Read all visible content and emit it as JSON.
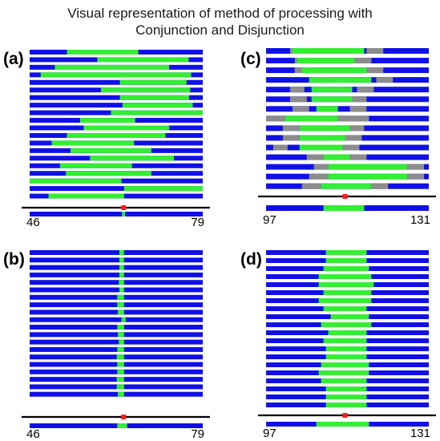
{
  "title": {
    "line1": "Visual representation of method of processing with",
    "line2": "Conjunction and Disjunction"
  },
  "colors": {
    "outside": "#1010e6",
    "inside": "#33ee33",
    "uncertain": "#8c8c8c",
    "axis": "#000000",
    "marker": "#ff1a1a"
  },
  "panels": [
    {
      "id": "a",
      "label": "(a)",
      "range": [
        46,
        79
      ],
      "ticks": [
        "46",
        "79"
      ],
      "marker": 63.9,
      "rows": [
        [
          [
            53.1,
            66.7
          ]
        ],
        [
          [
            58.9,
            76.3
          ]
        ],
        [
          [
            50.8,
            72.6
          ]
        ],
        [
          [
            48.1,
            76.8
          ]
        ],
        [
          [
            63.2,
            75.9
          ]
        ],
        [
          [
            59.6,
            76.6
          ]
        ],
        [
          [
            63.2,
            76.4
          ]
        ],
        [
          [
            63.7,
            77.1
          ]
        ],
        [
          [
            61.5,
            79.0
          ]
        ],
        [
          [
            55.6,
            66.1
          ]
        ],
        [
          [
            56.3,
            72.6
          ]
        ],
        [
          [
            53.1,
            71.9
          ]
        ],
        [
          [
            50.2,
            65.9
          ]
        ],
        [
          [
            53.8,
            69.2
          ]
        ],
        [
          [
            57.5,
            73.5
          ]
        ],
        [
          [
            51.8,
            65.5
          ]
        ],
        [
          [
            52.9,
            69.2
          ]
        ],
        [
          [
            46.0,
            63.5
          ]
        ],
        [
          [
            64.0,
            79.0
          ]
        ],
        [
          [
            49.6,
            64.0
          ]
        ]
      ],
      "result": [
        [
          63.6,
          64.2
        ]
      ]
    },
    {
      "id": "c",
      "label": "(c)",
      "range": [
        97,
        131
      ],
      "ticks": [
        "97",
        "131"
      ],
      "marker": 113.5,
      "rows": [
        [
          [
            102.5,
            117.5
          ]
        ],
        [
          [
            103.5,
            115.5
          ]
        ],
        [
          [
            104.5,
            118.0
          ]
        ],
        [
          [
            106.0,
            119.0
          ]
        ],
        [
          [
            106.5,
            115.0
          ]
        ],
        [
          [
            106.5,
            115.0
          ]
        ],
        [
          [
            107.5,
            112.0
          ]
        ],
        [
          [
            101.0,
            112.0
          ]
        ],
        [
          [
            104.0,
            114.5
          ]
        ],
        [
          [
            104.0,
            113.5
          ]
        ],
        [
          [
            104.0,
            113.0
          ]
        ],
        [
          [
            109.0,
            114.5
          ]
        ],
        [
          [
            110.0,
            126.5
          ]
        ],
        [
          [
            110.0,
            126.5
          ]
        ],
        [
          [
            108.5,
            119.0
          ]
        ]
      ],
      "uncertain_rows": [
        [
          [
            102.0,
            105.5
          ],
          [
            118.0,
            121.5
          ]
        ],
        [
          [
            103.0,
            106.5
          ],
          [
            115.5,
            119.0
          ]
        ],
        [
          [
            103.0,
            107.0
          ],
          [
            118.0,
            121.5
          ]
        ],
        [
          [
            107.0,
            110.5
          ],
          [
            120.0,
            123.5
          ]
        ],
        [
          [
            102.0,
            105.0
          ],
          [
            116.0,
            119.5
          ]
        ],
        [
          [
            102.0,
            105.5
          ],
          [
            114.5,
            118.0
          ]
        ],
        [
          [
            102.5,
            106.0
          ],
          [
            114.5,
            118.0
          ]
        ],
        [
          [
            97.0,
            101.0
          ],
          [
            112.0,
            118.5
          ]
        ],
        [
          [
            100.5,
            104.0
          ],
          [
            114.5,
            117.5
          ]
        ],
        [
          [
            100.5,
            104.0
          ],
          [
            113.5,
            117.0
          ]
        ],
        [
          [
            98.5,
            101.5
          ],
          [
            113.0,
            116.5
          ]
        ],
        [
          [
            105.5,
            109.0
          ],
          [
            114.5,
            118.0
          ]
        ],
        [
          [
            107.0,
            110.0
          ],
          [
            126.5,
            130.0
          ]
        ],
        [
          [
            106.0,
            110.0
          ],
          [
            126.5,
            130.0
          ]
        ],
        [
          [
            104.5,
            108.5
          ],
          [
            119.0,
            122.5
          ]
        ]
      ],
      "result": [
        [
          109.0,
          117.5
        ]
      ]
    },
    {
      "id": "b",
      "label": "(b)",
      "range": [
        46,
        79
      ],
      "ticks": [
        "46",
        "79"
      ],
      "marker": 63.9,
      "rows": [
        [
          [
            63.1,
            64.0
          ]
        ],
        [
          [
            63.1,
            64.0
          ]
        ],
        [
          [
            63.1,
            64.0
          ]
        ],
        [
          [
            63.1,
            64.0
          ]
        ],
        [
          [
            63.0,
            64.0
          ]
        ],
        [
          [
            63.1,
            64.0
          ]
        ],
        [
          [
            62.7,
            64.0
          ]
        ],
        [
          [
            62.7,
            64.0
          ]
        ],
        [
          [
            62.8,
            64.0
          ]
        ],
        [
          [
            63.5,
            64.3
          ]
        ],
        [
          [
            62.7,
            64.0
          ]
        ],
        [
          [
            62.8,
            64.0
          ]
        ],
        [
          [
            63.0,
            64.0
          ]
        ],
        [
          [
            62.7,
            64.0
          ]
        ],
        [
          [
            62.6,
            64.0
          ]
        ],
        [
          [
            62.7,
            64.0
          ]
        ],
        [
          [
            62.7,
            64.0
          ]
        ],
        [
          [
            62.6,
            64.0
          ]
        ],
        [
          [
            62.6,
            64.0
          ]
        ],
        [
          [
            62.8,
            64.0
          ]
        ]
      ],
      "result": [
        [
          62.7,
          64.6
        ]
      ]
    },
    {
      "id": "d",
      "label": "(d)",
      "range": [
        97,
        131
      ],
      "ticks": [
        "97",
        "131"
      ],
      "marker": 113.5,
      "rows": [
        [
          [
            109.5,
            118.0
          ]
        ],
        [
          [
            109.5,
            118.0
          ]
        ],
        [
          [
            109.0,
            118.5
          ]
        ],
        [
          [
            108.0,
            119.0
          ]
        ],
        [
          [
            108.0,
            119.5
          ]
        ],
        [
          [
            109.0,
            119.0
          ]
        ],
        [
          [
            108.0,
            119.0
          ]
        ],
        [
          [
            109.0,
            118.0
          ]
        ],
        [
          [
            110.5,
            118.5
          ]
        ],
        [
          [
            108.5,
            119.0
          ]
        ],
        [
          [
            110.0,
            118.0
          ]
        ],
        [
          [
            109.0,
            118.0
          ]
        ],
        [
          [
            109.5,
            118.0
          ]
        ],
        [
          [
            109.5,
            118.0
          ]
        ],
        [
          [
            108.5,
            118.5
          ]
        ],
        [
          [
            108.0,
            118.5
          ]
        ],
        [
          [
            108.5,
            118.0
          ]
        ],
        [
          [
            109.5,
            118.0
          ]
        ],
        [
          [
            109.5,
            118.0
          ]
        ],
        [
          [
            109.5,
            118.0
          ]
        ]
      ],
      "result": [
        [
          107.5,
          118.5
        ]
      ]
    }
  ]
}
